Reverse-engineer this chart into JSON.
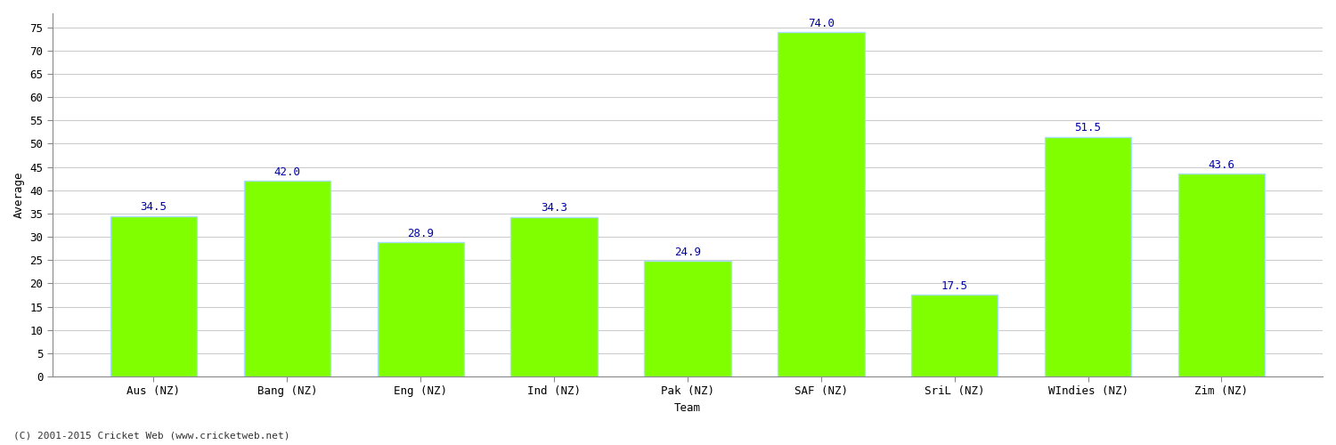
{
  "categories": [
    "Aus (NZ)",
    "Bang (NZ)",
    "Eng (NZ)",
    "Ind (NZ)",
    "Pak (NZ)",
    "SAF (NZ)",
    "SriL (NZ)",
    "WIndies (NZ)",
    "Zim (NZ)"
  ],
  "values": [
    34.5,
    42.0,
    28.9,
    34.3,
    24.9,
    74.0,
    17.5,
    51.5,
    43.6
  ],
  "bar_color": "#7fff00",
  "bar_edge_color": "#aaddff",
  "xlabel": "Team",
  "ylabel": "Average",
  "ylim": [
    0,
    78
  ],
  "yticks": [
    0,
    5,
    10,
    15,
    20,
    25,
    30,
    35,
    40,
    45,
    50,
    55,
    60,
    65,
    70,
    75
  ],
  "value_label_color": "#0000aa",
  "value_label_fontsize": 9,
  "axis_label_fontsize": 9,
  "tick_label_fontsize": 9,
  "grid_color": "#cccccc",
  "background_color": "#ffffff",
  "footer_text": "(C) 2001-2015 Cricket Web (www.cricketweb.net)",
  "footer_fontsize": 8,
  "bar_width": 0.65
}
